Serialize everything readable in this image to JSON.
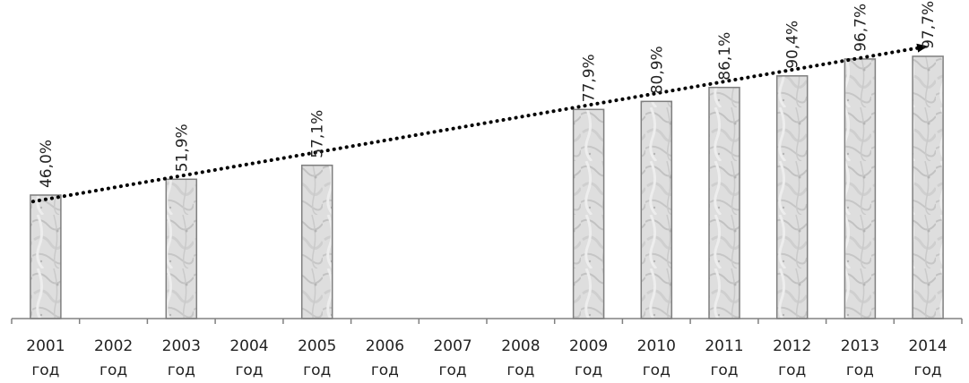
{
  "chart_data": {
    "type": "bar",
    "categories": [
      "2001",
      "2002",
      "2003",
      "2004",
      "2005",
      "2006",
      "2007",
      "2008",
      "2009",
      "2010",
      "2011",
      "2012",
      "2013",
      "2014"
    ],
    "category_suffix": "год",
    "values": [
      46.0,
      null,
      51.9,
      null,
      57.1,
      null,
      null,
      null,
      77.9,
      80.9,
      86.1,
      90.4,
      96.7,
      97.7
    ],
    "value_labels": [
      "46,0%",
      "",
      "51,9%",
      "",
      "57,1%",
      "",
      "",
      "",
      "77,9%",
      "80,9%",
      "86,1%",
      "90,4%",
      "96,7%",
      "97,7%"
    ],
    "ylim": [
      0,
      100
    ],
    "grid": false,
    "trendline": {
      "style": "dotted",
      "arrow": true,
      "color": "#000000"
    },
    "bar_style": "marble texture",
    "colors": {
      "bar_fill": "#d9d9d9",
      "bar_edge": "#7f7f7f",
      "axis": "#808080"
    }
  }
}
